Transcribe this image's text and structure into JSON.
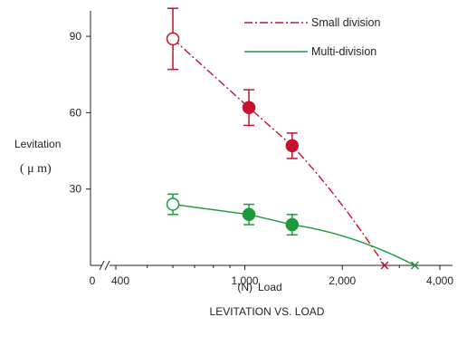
{
  "chart_data": {
    "type": "line",
    "caption": "LEVITATION VS. LOAD",
    "xlabel": "Load",
    "xunit": "(N)",
    "ylabel": "Levitation",
    "yunit": "( μ m)",
    "x_break": true,
    "x_ticks": [
      {
        "value": 0,
        "label": "0"
      },
      {
        "value": 400,
        "label": "400"
      },
      {
        "value": 1000,
        "label": "1,000"
      },
      {
        "value": 2000,
        "label": "2,000"
      },
      {
        "value": 4000,
        "label": "4,000"
      }
    ],
    "y_ticks": [
      {
        "value": 30,
        "label": "30"
      },
      {
        "value": 60,
        "label": "60"
      },
      {
        "value": 90,
        "label": "90"
      }
    ],
    "ylim": [
      0,
      100
    ],
    "series": [
      {
        "name": "Small division",
        "color": "#c4122f",
        "line_style": "dash-dot",
        "points": [
          {
            "x": 600,
            "y": 89,
            "err": 12,
            "marker": "open-circle"
          },
          {
            "x": 1030,
            "y": 62,
            "err": 7,
            "marker": "filled-circle"
          },
          {
            "x": 1400,
            "y": 47,
            "err": 5,
            "marker": "filled-circle"
          }
        ],
        "end_point": {
          "x": 2700,
          "y": 0,
          "marker": "cross"
        }
      },
      {
        "name": "Multi-division",
        "color": "#1e9a3c",
        "line_style": "solid",
        "points": [
          {
            "x": 600,
            "y": 24,
            "err": 4,
            "marker": "open-circle"
          },
          {
            "x": 1030,
            "y": 20,
            "err": 4,
            "marker": "filled-circle"
          },
          {
            "x": 1400,
            "y": 16,
            "err": 4,
            "marker": "filled-circle"
          }
        ],
        "end_point": {
          "x": 3350,
          "y": 0,
          "marker": "cross"
        }
      }
    ]
  }
}
